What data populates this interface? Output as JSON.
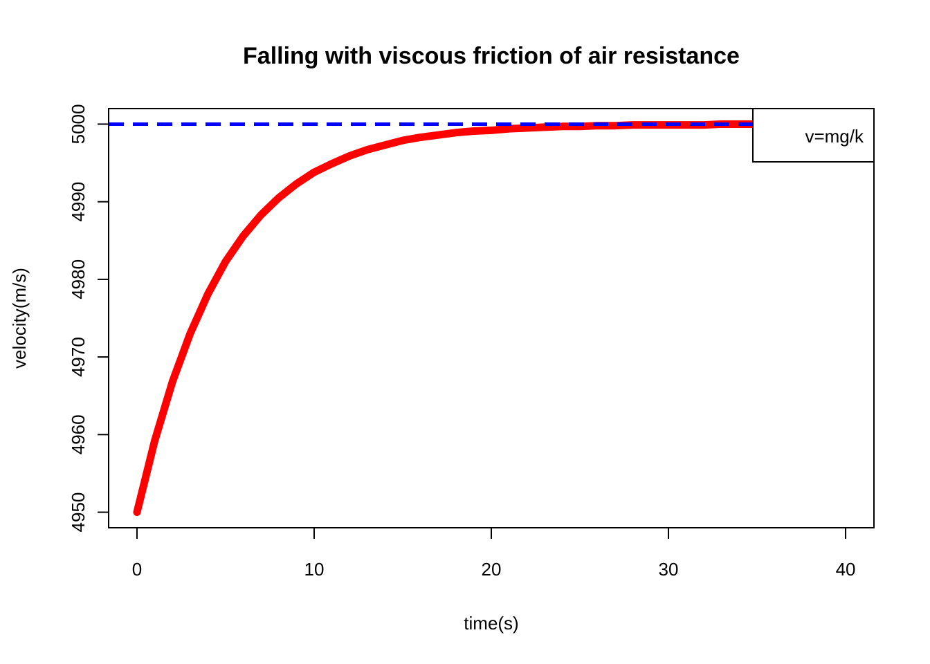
{
  "chart_data": {
    "type": "line",
    "title": "Falling with viscous friction of air resistance",
    "xlabel": "time(s)",
    "ylabel": "velocity(m/s)",
    "xlim": [
      -1.6,
      41.6
    ],
    "ylim": [
      4948.0,
      5002.0
    ],
    "x_ticks": [
      0,
      10,
      20,
      30,
      40
    ],
    "y_ticks": [
      4950,
      4960,
      4970,
      4980,
      4990,
      5000
    ],
    "x_tick_labels": [
      "0",
      "10",
      "20",
      "30",
      "40"
    ],
    "y_tick_labels": [
      "4950",
      "4960",
      "4970",
      "4980",
      "4990",
      "5000"
    ],
    "series": [
      {
        "color": "#ff0000",
        "style": "solid",
        "x": [
          0,
          1,
          2,
          3,
          4,
          5,
          6,
          7,
          8,
          9,
          10,
          11,
          12,
          13,
          14,
          15,
          16,
          17,
          18,
          19,
          20,
          21,
          22,
          23,
          24,
          25,
          26,
          27,
          28,
          29,
          30,
          31,
          32,
          33,
          34,
          35
        ],
        "y": [
          4950.0,
          4959.2,
          4966.8,
          4973.0,
          4978.1,
          4982.3,
          4985.6,
          4988.3,
          4990.5,
          4992.3,
          4993.8,
          4994.9,
          4995.9,
          4996.7,
          4997.3,
          4997.9,
          4998.3,
          4998.6,
          4998.9,
          4999.1,
          4999.2,
          4999.4,
          4999.5,
          4999.6,
          4999.7,
          4999.7,
          4999.8,
          4999.8,
          4999.9,
          4999.9,
          4999.9,
          4999.9,
          4999.9,
          5000.0,
          5000.0,
          5000.0
        ]
      },
      {
        "name": "v=mg/k",
        "color": "#0000ff",
        "style": "dashed",
        "x": [
          -1.6,
          35.0
        ],
        "y": [
          5000.0,
          5000.0
        ]
      }
    ],
    "legend": {
      "position": "top-right",
      "entries": [
        "v=mg/k"
      ]
    },
    "grid": false
  }
}
